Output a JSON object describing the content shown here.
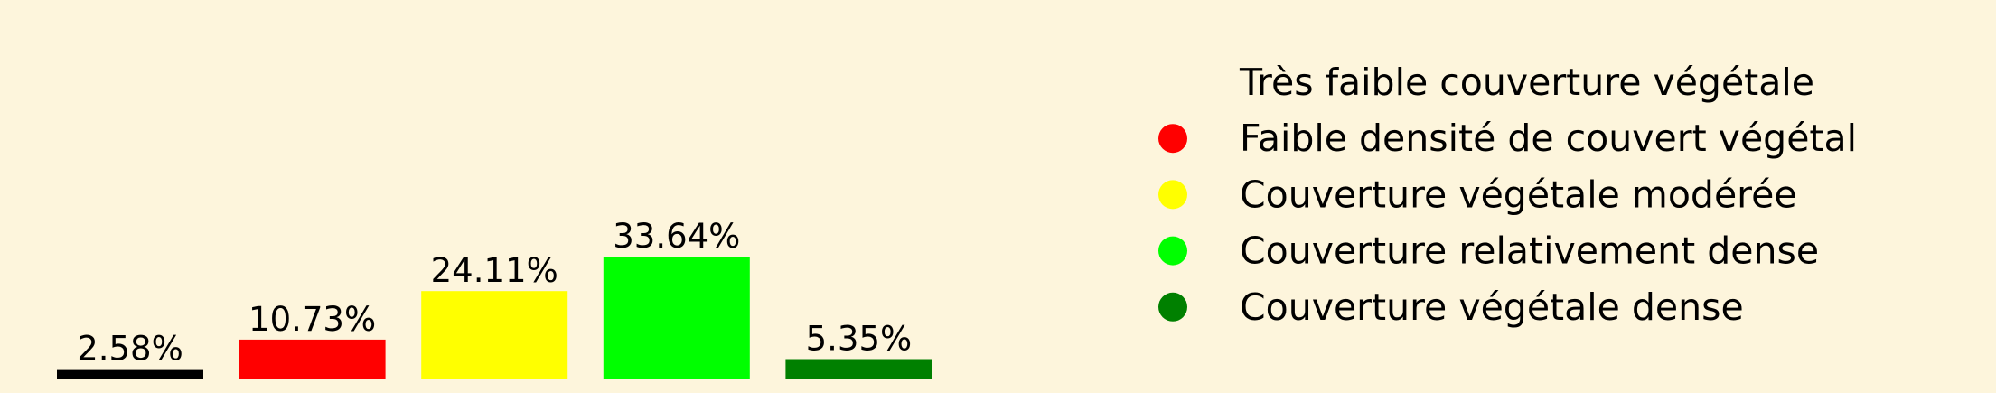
{
  "background": "#fdf5dc",
  "chart_data": {
    "type": "bar",
    "title": "",
    "xlabel": "",
    "ylabel": "",
    "categories": [
      "Très faible couverture végétale",
      "Faible densité de couvert végétal",
      "Couverture végétale modérée",
      "Couverture relativement dense",
      "Couverture végétale dense"
    ],
    "values": [
      2.58,
      10.73,
      24.11,
      33.64,
      5.35
    ],
    "labels": [
      "2.58%",
      "10.73%",
      "24.11%",
      "33.64%",
      "5.35%"
    ],
    "colors": [
      "#000000",
      "#ff0000",
      "#ffff00",
      "#00ff00",
      "#008000"
    ],
    "ylim": [
      0,
      33.64
    ],
    "axes_visible": false,
    "grid": false,
    "legend": {
      "position": "right",
      "marker": "circle",
      "entries": [
        "Très faible couverture végétale",
        "Faible densité de couvert végétal",
        "Couverture végétale modérée",
        "Couverture relativement dense",
        "Couverture végétale dense"
      ]
    }
  }
}
